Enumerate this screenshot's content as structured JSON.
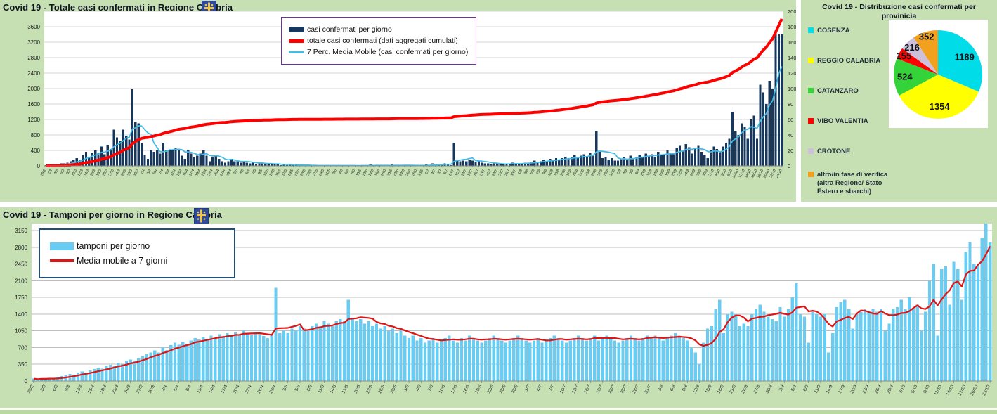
{
  "page": {
    "background": "#c6e0b4",
    "panel_gap_color": "#ffffff"
  },
  "chart_data": [
    {
      "type": "bar",
      "title": "Covid 19 - Totale casi confermati in Regione Calabria",
      "x_first": "29/2",
      "x_last": "24/10",
      "x_tick_step": 2,
      "x_tick_labels": [
        "29/2",
        "2/3",
        "4/3",
        "6/3",
        "8/3",
        "10/3",
        "12/3",
        "14/3",
        "16/3",
        "18/3",
        "20/3",
        "22/3",
        "24/3",
        "26/3",
        "28/3",
        "30/3",
        "1/4",
        "3/4",
        "5/4",
        "7/4",
        "9/4",
        "11/4",
        "13/4",
        "15/4",
        "17/4",
        "19/4",
        "21/4",
        "23/4",
        "25/4",
        "27/4",
        "29/4",
        "1/5",
        "3/5",
        "5/5",
        "7/5",
        "9/5",
        "11/5",
        "13/5",
        "15/5",
        "17/5",
        "19/5",
        "21/5",
        "23/5",
        "25/5",
        "27/5",
        "29/5",
        "31/5",
        "2/6",
        "4/6",
        "6/6",
        "8/6",
        "10/6",
        "12/6",
        "14/6",
        "16/6",
        "18/6",
        "20/6",
        "22/6",
        "24/6",
        "26/6",
        "28/6",
        "30/6",
        "2/7",
        "4/7",
        "6/7",
        "8/7",
        "10/7",
        "12/7",
        "14/7",
        "16/7",
        "18/7",
        "20/7",
        "22/7",
        "24/7",
        "26/7",
        "28/7",
        "30/7",
        "1/8",
        "3/8",
        "5/8",
        "7/8",
        "9/8",
        "11/8",
        "13/8",
        "15/8",
        "17/8",
        "19/8",
        "21/8",
        "23/8",
        "25/8",
        "27/8",
        "29/8",
        "31/8",
        "2/9",
        "4/9",
        "6/9",
        "8/9",
        "10/9",
        "12/9",
        "14/9",
        "16/9",
        "18/9",
        "20/9",
        "22/9",
        "24/9",
        "26/9",
        "28/9",
        "30/9",
        "2/10",
        "4/10",
        "6/10",
        "8/10",
        "10/10",
        "12/10",
        "14/10",
        "16/10",
        "18/10",
        "20/10",
        "22/10",
        "24/10"
      ],
      "left_axis": {
        "ylim": [
          0,
          4000
        ],
        "label_values": [
          0,
          400,
          800,
          1200,
          1600,
          2000,
          2400,
          2800,
          3200,
          3600
        ],
        "used_by": "totale casi confermati (dati aggregati cumulati)"
      },
      "right_axis": {
        "ylim": [
          0,
          200
        ],
        "label_values": [
          0,
          20,
          40,
          60,
          80,
          100,
          120,
          140,
          160,
          180,
          200
        ],
        "used_by": "casi confermati per giorno"
      },
      "series": [
        {
          "name": "casi confermati per giorno",
          "type": "bar",
          "axis": "right",
          "color": "#17375d",
          "values": [
            1,
            1,
            1,
            2,
            2,
            3,
            3,
            4,
            6,
            8,
            10,
            8,
            14,
            18,
            12,
            17,
            20,
            17,
            25,
            15,
            27,
            22,
            47,
            37,
            32,
            47,
            39,
            34,
            99,
            57,
            55,
            30,
            14,
            9,
            21,
            18,
            20,
            16,
            30,
            20,
            21,
            20,
            23,
            20,
            13,
            9,
            21,
            16,
            11,
            13,
            16,
            20,
            13,
            6,
            11,
            13,
            9,
            6,
            4,
            6,
            9,
            6,
            6,
            4,
            5,
            4,
            3,
            5,
            2,
            4,
            3,
            2,
            2,
            3,
            2,
            2,
            1,
            2,
            1,
            2,
            1,
            1,
            1,
            1,
            0,
            1,
            0,
            1,
            0,
            0,
            1,
            0,
            1,
            0,
            1,
            0,
            0,
            1,
            0,
            1,
            0,
            0,
            1,
            0,
            1,
            2,
            0,
            1,
            0,
            0,
            1,
            0,
            2,
            1,
            1,
            0,
            1,
            1,
            0,
            1,
            0,
            1,
            0,
            2,
            1,
            3,
            2,
            1,
            2,
            3,
            2,
            1,
            30,
            8,
            6,
            7,
            6,
            8,
            7,
            5,
            6,
            4,
            3,
            3,
            2,
            3,
            3,
            2,
            2,
            2,
            3,
            4,
            3,
            3,
            3,
            4,
            4,
            5,
            7,
            5,
            6,
            8,
            6,
            9,
            7,
            10,
            8,
            10,
            12,
            9,
            11,
            14,
            10,
            13,
            15,
            12,
            17,
            14,
            45,
            18,
            10,
            12,
            8,
            10,
            7,
            7,
            9,
            11,
            8,
            13,
            10,
            12,
            14,
            11,
            16,
            13,
            15,
            12,
            18,
            15,
            14,
            20,
            17,
            15,
            23,
            26,
            19,
            28,
            24,
            16,
            22,
            26,
            18,
            14,
            10,
            20,
            25,
            22,
            18,
            25,
            30,
            35,
            70,
            45,
            40,
            55,
            50,
            35,
            60,
            65,
            35,
            105,
            95,
            80,
            110,
            100,
            175,
            170,
            170
          ]
        },
        {
          "name": "totale casi confermati (dati aggregati cumulati)",
          "type": "line",
          "axis": "left",
          "color": "#ff0000",
          "derived": "cumulative_sum_of_daily_series"
        },
        {
          "name": "7 Perc. Media Mobile (casi confermati per giorno)",
          "type": "line",
          "axis": "right",
          "color": "#3fbcea",
          "derived": "7_day_moving_average_of_daily_series"
        }
      ]
    },
    {
      "type": "pie",
      "title": "Covid 19 - Distribuzione casi confermati per provinicia",
      "categories": [
        "COSENZA",
        "REGGIO CALABRIA",
        "CATANZARO",
        "VIBO VALENTIA",
        "CROTONE",
        "altro/in fase di verifica (altra Regione/ Stato Estero e sbarchi)"
      ],
      "values": [
        1189,
        1354,
        524,
        155,
        216,
        352
      ],
      "colors": [
        "#00dde8",
        "#ffff00",
        "#35d33a",
        "#ff0000",
        "#ccc0da",
        "#f2a11e"
      ],
      "total": 3790,
      "label_color": "#111111",
      "start_angle": "12-oclock",
      "direction": "clockwise"
    },
    {
      "type": "bar",
      "title": "Covid 19 - Tamponi per giorno in Regione Calabria",
      "x_first": "29/2",
      "x_last": "23/10",
      "x_tick_step": 3,
      "x_tick_labels": [
        "29/2",
        "3/3",
        "6/3",
        "9/3",
        "12/3",
        "15/3",
        "18/3",
        "21/3",
        "24/3",
        "27/3",
        "30/3",
        "2/4",
        "5/4",
        "8/4",
        "11/4",
        "14/4",
        "17/4",
        "20/4",
        "23/4",
        "26/4",
        "29/4",
        "2/5",
        "5/5",
        "8/5",
        "11/5",
        "14/5",
        "17/5",
        "20/5",
        "23/5",
        "26/5",
        "29/5",
        "1/6",
        "4/6",
        "7/6",
        "10/6",
        "13/6",
        "16/6",
        "19/6",
        "22/6",
        "25/6",
        "28/6",
        "1/7",
        "4/7",
        "7/7",
        "10/7",
        "13/7",
        "16/7",
        "19/7",
        "22/7",
        "25/7",
        "28/7",
        "31/7",
        "3/8",
        "6/8",
        "9/8",
        "12/8",
        "15/8",
        "18/8",
        "21/8",
        "24/8",
        "27/8",
        "30/8",
        "2/9",
        "5/9",
        "8/9",
        "11/9",
        "14/9",
        "17/9",
        "20/9",
        "23/9",
        "26/9",
        "29/9",
        "2/10",
        "5/10",
        "8/10",
        "11/10",
        "14/10",
        "17/10",
        "20/10",
        "23/10"
      ],
      "y_axis": {
        "ylim": [
          0,
          3300
        ],
        "label_values": [
          0,
          350,
          700,
          1050,
          1400,
          1750,
          2100,
          2450,
          2800,
          3150
        ]
      },
      "series": [
        {
          "name": "tamponi per giorno",
          "type": "bar",
          "color": "#69ccf2",
          "values": [
            50,
            30,
            60,
            40,
            70,
            50,
            80,
            100,
            120,
            150,
            130,
            180,
            200,
            170,
            220,
            250,
            280,
            260,
            310,
            340,
            320,
            380,
            360,
            420,
            450,
            430,
            480,
            520,
            560,
            600,
            640,
            600,
            700,
            650,
            750,
            800,
            760,
            820,
            780,
            850,
            900,
            870,
            920,
            880,
            950,
            900,
            980,
            940,
            1000,
            960,
            1020,
            980,
            1050,
            1000,
            960,
            1020,
            980,
            940,
            900,
            950,
            1950,
            1000,
            1050,
            1000,
            1100,
            1050,
            1150,
            1100,
            1050,
            1150,
            1200,
            1150,
            1250,
            1200,
            1150,
            1250,
            1300,
            1250,
            1700,
            1300,
            1250,
            1300,
            1200,
            1250,
            1150,
            1200,
            1100,
            1150,
            1050,
            1100,
            1000,
            1050,
            950,
            900,
            950,
            850,
            900,
            800,
            850,
            900,
            800,
            850,
            900,
            950,
            850,
            800,
            900,
            850,
            950,
            900,
            850,
            800,
            850,
            900,
            950,
            900,
            850,
            800,
            850,
            900,
            950,
            900,
            850,
            800,
            850,
            900,
            800,
            850,
            900,
            950,
            900,
            850,
            800,
            850,
            900,
            950,
            900,
            850,
            900,
            950,
            850,
            900,
            950,
            900,
            850,
            800,
            850,
            900,
            950,
            900,
            850,
            900,
            950,
            900,
            950,
            900,
            850,
            900,
            950,
            1000,
            950,
            900,
            850,
            700,
            600,
            350,
            800,
            1100,
            1150,
            1500,
            1700,
            1000,
            1400,
            1450,
            1400,
            1150,
            1200,
            1150,
            1400,
            1500,
            1600,
            1450,
            1350,
            1300,
            1250,
            1550,
            1350,
            1500,
            1750,
            2050,
            1400,
            1350,
            800,
            1450,
            1400,
            1350,
            1400,
            600,
            1000,
            1550,
            1650,
            1700,
            1500,
            1100,
            1400,
            1450,
            1500,
            1450,
            1500,
            1450,
            1500,
            1050,
            1200,
            1500,
            1550,
            1700,
            1500,
            1750,
            1500,
            1600,
            1050,
            1450,
            2100,
            2450,
            950,
            2350,
            2400,
            1600,
            2500,
            2350,
            1700,
            2700,
            2900,
            2450,
            2450,
            3000,
            3350,
            2900
          ]
        },
        {
          "name": "Media mobile a 7 giorni",
          "type": "line",
          "color": "#e01414",
          "derived": "7_day_moving_average_of_tamponi_series"
        }
      ]
    }
  ]
}
